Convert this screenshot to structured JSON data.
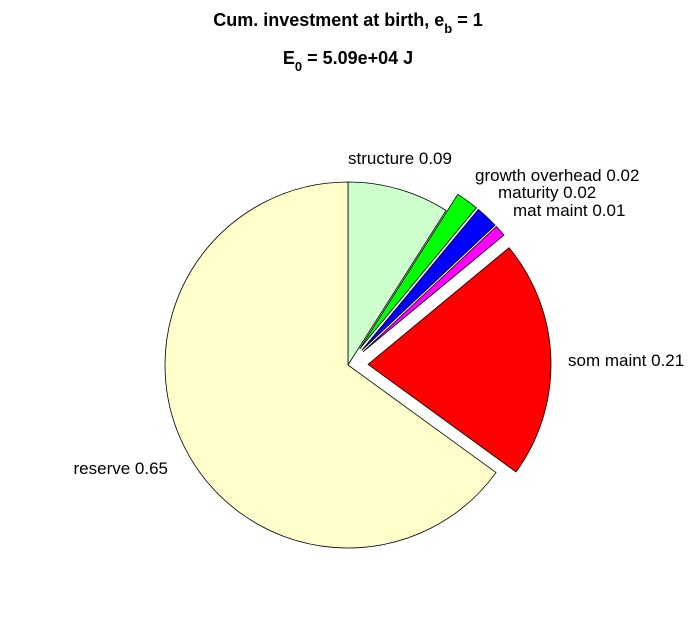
{
  "chart_data": {
    "type": "pie",
    "title": [
      "Cum. investment at birth, e",
      "b",
      " = 1"
    ],
    "subtitle": [
      "E",
      "0",
      " = 5.09e+04 J"
    ],
    "labels": [
      "structure 0.09",
      "growth overhead 0.02",
      "maturity 0.02",
      "mat maint 0.01",
      "som maint 0.21",
      "reserve 0.65"
    ],
    "values": [
      0.09,
      0.02,
      0.02,
      0.01,
      0.21,
      0.65
    ],
    "colors": [
      "#ccffcc",
      "#00ff00",
      "#0000ff",
      "#ff00ff",
      "#ff0000",
      "#ffffcc"
    ],
    "explode": [
      0,
      1,
      1,
      1,
      1,
      0
    ]
  }
}
